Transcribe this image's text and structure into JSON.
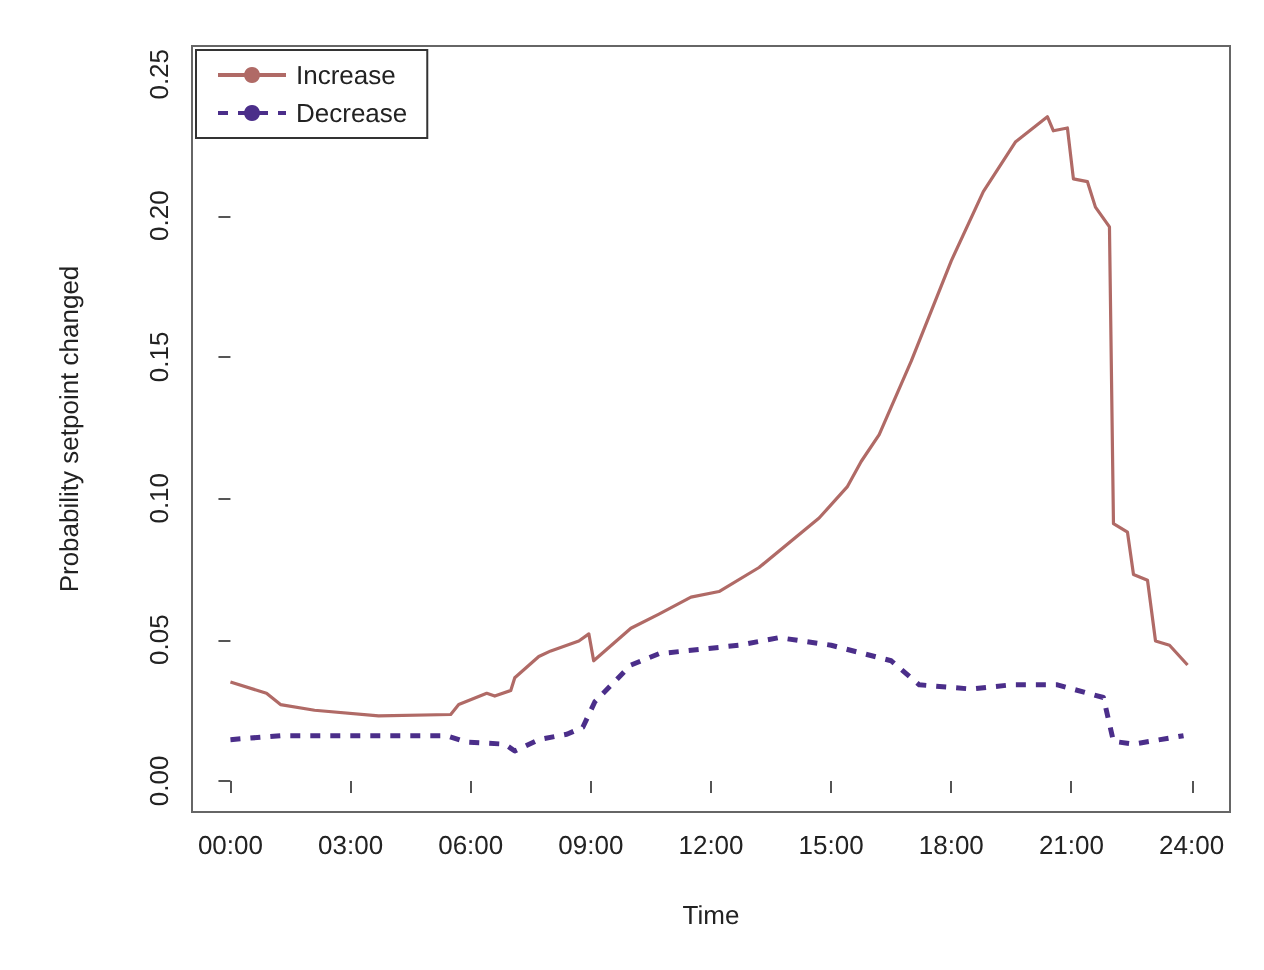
{
  "chart_data": {
    "type": "line",
    "xlabel": "Time",
    "ylabel": "Probability setpoint changed",
    "xlim": [
      -0.96,
      24.96
    ],
    "ylim": [
      -0.011,
      0.26
    ],
    "xticks": [
      {
        "value": 0,
        "label": "00:00"
      },
      {
        "value": 3,
        "label": "03:00"
      },
      {
        "value": 6,
        "label": "06:00"
      },
      {
        "value": 9,
        "label": "09:00"
      },
      {
        "value": 12,
        "label": "12:00"
      },
      {
        "value": 15,
        "label": "15:00"
      },
      {
        "value": 18,
        "label": "18:00"
      },
      {
        "value": 21,
        "label": "21:00"
      },
      {
        "value": 24,
        "label": "24:00"
      }
    ],
    "yticks": [
      {
        "value": 0,
        "label": "0.00"
      },
      {
        "value": 0.05,
        "label": "0.05"
      },
      {
        "value": 0.1,
        "label": "0.10"
      },
      {
        "value": 0.15,
        "label": "0.15"
      },
      {
        "value": 0.2,
        "label": "0.20"
      },
      {
        "value": 0.25,
        "label": "0.25"
      }
    ],
    "grid": false,
    "legend": "top left",
    "marker": "none",
    "series": [
      {
        "name": "Increase",
        "color": "#b06a66",
        "line_style": "solid",
        "x": [
          0,
          0.9,
          1.25,
          2.1,
          3.7,
          5.5,
          5.7,
          6.4,
          6.6,
          7.0,
          7.1,
          7.7,
          8.0,
          8.7,
          8.95,
          9.07,
          10.0,
          10.7,
          11.5,
          12.2,
          13.2,
          14.7,
          15.4,
          15.75,
          16.2,
          17.0,
          18.0,
          18.8,
          19.6,
          20.4,
          20.55,
          20.9,
          21.05,
          21.4,
          21.6,
          21.95,
          22.05,
          22.4,
          22.55,
          22.9,
          23.1,
          23.45,
          23.9
        ],
        "values": [
          0.035,
          0.031,
          0.027,
          0.025,
          0.023,
          0.0235,
          0.027,
          0.031,
          0.03,
          0.032,
          0.0365,
          0.044,
          0.046,
          0.0495,
          0.052,
          0.0425,
          0.054,
          0.059,
          0.065,
          0.067,
          0.0755,
          0.093,
          0.104,
          0.113,
          0.1225,
          0.1485,
          0.184,
          0.2085,
          0.226,
          0.235,
          0.23,
          0.231,
          0.213,
          0.212,
          0.203,
          0.196,
          0.091,
          0.088,
          0.073,
          0.071,
          0.0495,
          0.048,
          0.041
        ]
      },
      {
        "name": "Decrease",
        "color": "#4b2e8a",
        "line_style": "dashed",
        "x": [
          0,
          1.25,
          5.4,
          5.9,
          6.85,
          7.1,
          7.7,
          8.4,
          8.8,
          9.1,
          10.0,
          10.7,
          12.7,
          13.7,
          15.0,
          16.5,
          17.2,
          18.5,
          19.5,
          20.65,
          21.8,
          22.05,
          22.55,
          23.8
        ],
        "values": [
          0.0146,
          0.016,
          0.016,
          0.0137,
          0.013,
          0.0106,
          0.0146,
          0.0165,
          0.019,
          0.028,
          0.041,
          0.045,
          0.048,
          0.0507,
          0.048,
          0.0425,
          0.034,
          0.0325,
          0.034,
          0.034,
          0.0295,
          0.014,
          0.013,
          0.016
        ]
      }
    ]
  }
}
